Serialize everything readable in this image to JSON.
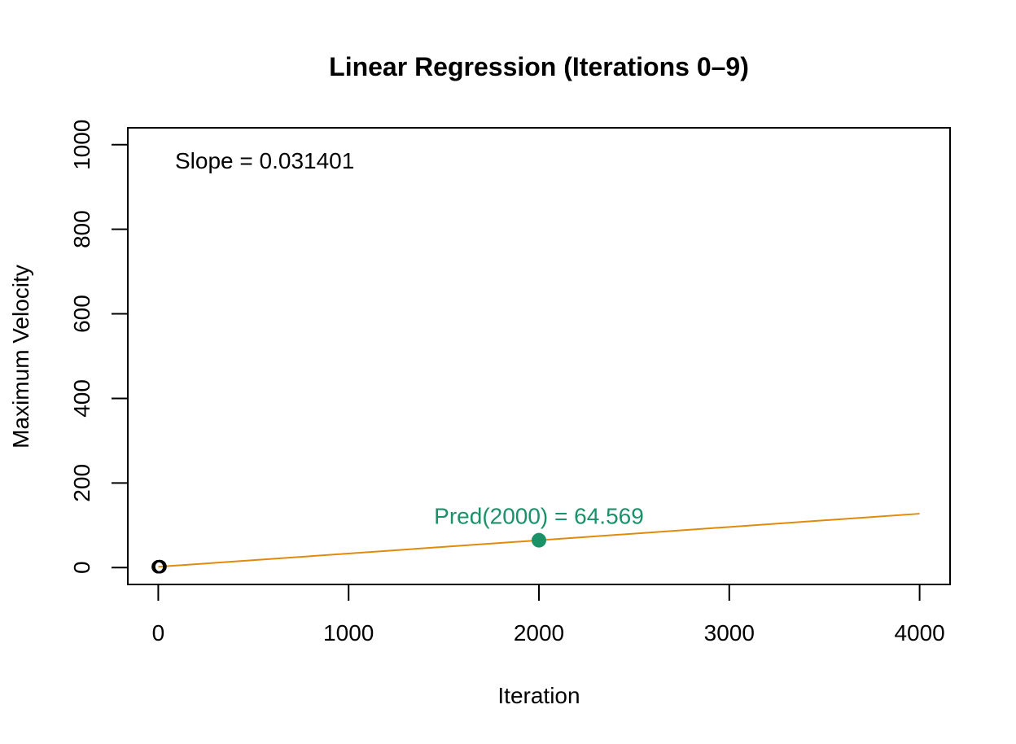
{
  "chart_data": {
    "type": "scatter",
    "title": "Linear Regression (Iterations 0–9)",
    "xlabel": "Iteration",
    "ylabel": "Maximum Velocity",
    "xlim": [
      -160,
      4160
    ],
    "ylim": [
      -40,
      1040
    ],
    "x_ticks": [
      0,
      1000,
      2000,
      3000,
      4000
    ],
    "y_ticks": [
      0,
      200,
      400,
      600,
      800,
      1000
    ],
    "grid": false,
    "points": [
      {
        "x": 0,
        "y": 1.8
      },
      {
        "x": 1,
        "y": 1.8
      },
      {
        "x": 2,
        "y": 1.9
      },
      {
        "x": 3,
        "y": 1.9
      },
      {
        "x": 4,
        "y": 1.9
      },
      {
        "x": 5,
        "y": 1.9
      },
      {
        "x": 6,
        "y": 2.0
      },
      {
        "x": 7,
        "y": 2.0
      },
      {
        "x": 8,
        "y": 2.0
      },
      {
        "x": 9,
        "y": 2.1
      }
    ],
    "regression_line": {
      "slope": 0.031401,
      "intercept": 1.767,
      "x_range": [
        0,
        4000
      ],
      "color": "#E08A0B"
    },
    "prediction": {
      "x": 2000,
      "y": 64.569,
      "color": "#1B9168"
    },
    "annotations": {
      "slope_text": "Slope = 0.031401",
      "pred_text": "Pred(2000) = 64.569"
    }
  }
}
